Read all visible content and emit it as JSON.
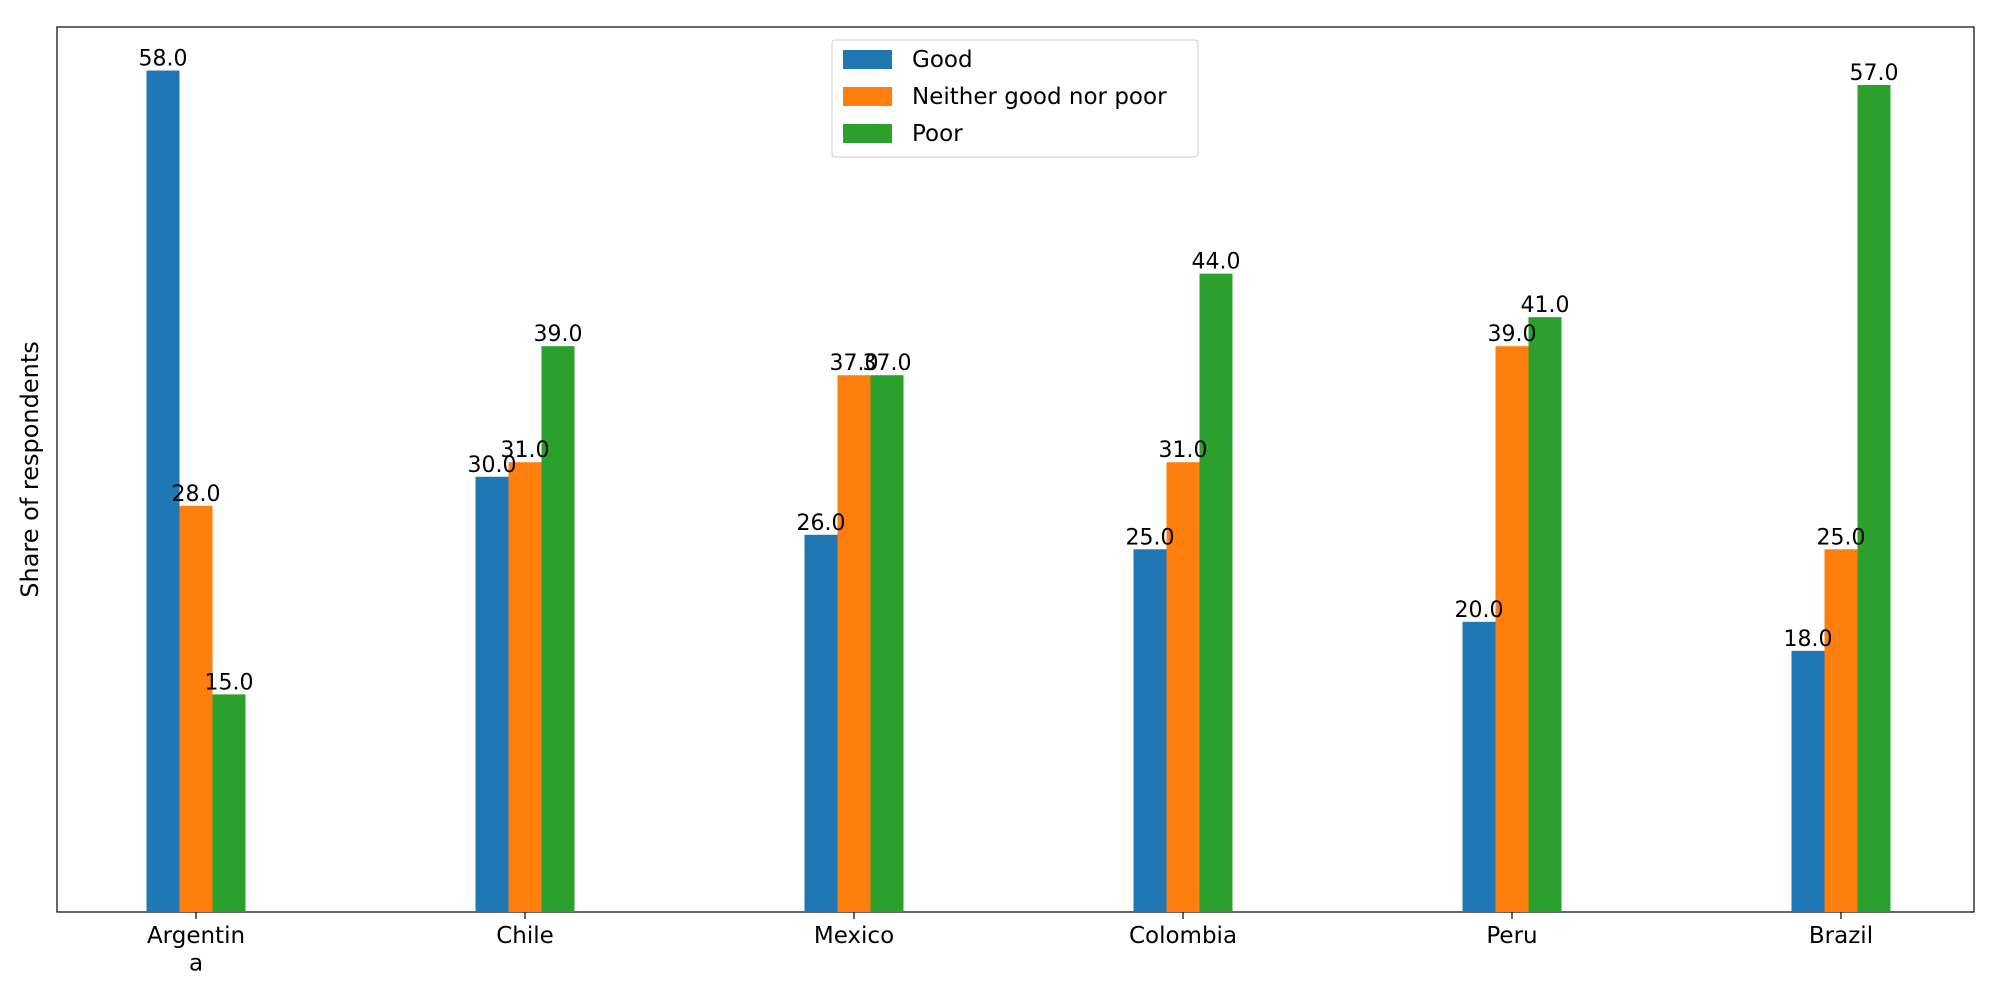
{
  "chart_data": {
    "type": "bar",
    "title": "",
    "xlabel": "",
    "ylabel": "Share of respondents",
    "categories": [
      "Argentin\na",
      "Chile",
      "Mexico",
      "Colombia",
      "Peru",
      "Brazil"
    ],
    "series": [
      {
        "name": "Good",
        "color": "#1f77b4",
        "values": [
          58.0,
          30.0,
          26.0,
          25.0,
          20.0,
          18.0
        ]
      },
      {
        "name": "Neither good nor poor",
        "color": "#ff7f0e",
        "values": [
          28.0,
          31.0,
          37.0,
          31.0,
          39.0,
          25.0
        ]
      },
      {
        "name": "Poor",
        "color": "#2ca02c",
        "values": [
          15.0,
          39.0,
          37.0,
          44.0,
          41.0,
          57.0
        ]
      }
    ],
    "ylim": [
      0,
      61
    ],
    "y_ticks_visible": false,
    "grid": false,
    "legend_placement": "top-center",
    "data_labels": true
  }
}
